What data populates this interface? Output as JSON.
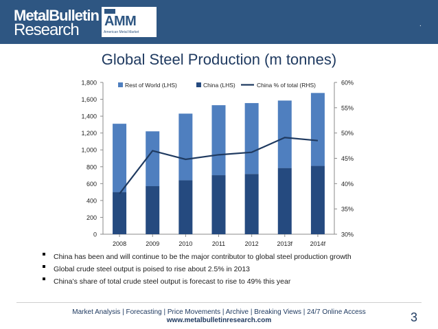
{
  "header": {
    "logo_line1": "MetalBulletin",
    "logo_line2": "Research",
    "amm_logo": "AMM",
    "amm_tagline": "American Metal Market",
    "corner_mark": "."
  },
  "colors": {
    "header_bg": "#2e5682",
    "rest_of_world": "#4f7fbf",
    "china": "#254a7f",
    "china_share_line": "#1f3a60"
  },
  "chart_data": {
    "type": "bar",
    "title": "Global Steel Production (m tonnes)",
    "categories": [
      "2008",
      "2009",
      "2010",
      "2011",
      "2012",
      "2013f",
      "2014f"
    ],
    "stacked": true,
    "series": [
      {
        "name": "Rest of World (LHS)",
        "kind": "bar",
        "values": [
          810,
          650,
          790,
          830,
          840,
          800,
          865
        ]
      },
      {
        "name": "China (LHS)",
        "kind": "bar",
        "values": [
          500,
          570,
          640,
          700,
          715,
          785,
          810
        ]
      },
      {
        "name": "China % of total (RHS)",
        "kind": "line",
        "axis": "right",
        "values": [
          38.0,
          46.5,
          44.8,
          45.7,
          46.2,
          49.1,
          48.5
        ]
      }
    ],
    "ylim_left": [
      0,
      1800
    ],
    "yticks_left": [
      "0",
      "200",
      "400",
      "600",
      "800",
      "1,000",
      "1,200",
      "1,400",
      "1,600",
      "1,800"
    ],
    "ylim_right": [
      30,
      60
    ],
    "yticks_right": [
      "30%",
      "35%",
      "40%",
      "45%",
      "50%",
      "55%",
      "60%"
    ],
    "grid": false,
    "legend_position": "top"
  },
  "bullets": [
    "China has been and will continue to be the major contributor to global steel production growth",
    "Global crude steel output is poised to rise about 2.5% in 2013",
    "China’s share of total crude steel output is forecast to rise to 49% this year"
  ],
  "footer": {
    "links": "Market Analysis | Forecasting | Price Movements | Archive | Breaking Views | 24/7 Online Access",
    "url": "www.metalbulletinresearch.com",
    "page_number": "3"
  }
}
